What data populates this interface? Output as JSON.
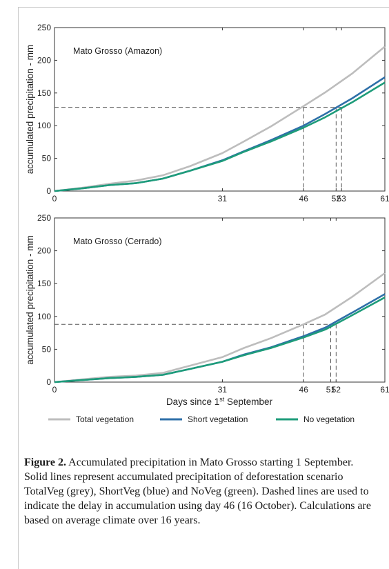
{
  "chart_data": [
    {
      "type": "line",
      "title": "Mato Grosso (Amazon)",
      "xlabel": "",
      "ylabel": "accumulated precipitation - mm",
      "xlim": [
        0,
        61
      ],
      "ylim": [
        0,
        250
      ],
      "yticks": [
        0,
        50,
        100,
        150,
        200,
        250
      ],
      "xticks": [
        0,
        31,
        46,
        52,
        53,
        61
      ],
      "x": [
        0,
        5,
        10,
        15,
        20,
        25,
        31,
        35,
        40,
        46,
        50,
        55,
        61
      ],
      "series": [
        {
          "name": "Total vegetation",
          "color": "#bdbdbd",
          "values": [
            0,
            5,
            11,
            16,
            24,
            38,
            58,
            76,
            99,
            130,
            151,
            180,
            221
          ]
        },
        {
          "name": "Short vegetation",
          "color": "#2e6fa8",
          "values": [
            0,
            4,
            9,
            12,
            19,
            31,
            47,
            61,
            78,
            100,
            118,
            142,
            174
          ]
        },
        {
          "name": "No vegetation",
          "color": "#1e9c7a",
          "values": [
            0,
            4,
            9,
            12,
            19,
            31,
            46,
            60,
            76,
            97,
            113,
            136,
            166
          ]
        }
      ],
      "reference_y": 128,
      "reference_x": [
        46,
        52,
        53
      ]
    },
    {
      "type": "line",
      "title": "Mato Grosso (Cerrado)",
      "xlabel": "Days since 1st September",
      "ylabel": "accumulated precipitation - mm",
      "xlim": [
        0,
        61
      ],
      "ylim": [
        0,
        250
      ],
      "yticks": [
        0,
        50,
        100,
        150,
        200,
        250
      ],
      "xticks": [
        0,
        31,
        46,
        51,
        52,
        61
      ],
      "x": [
        0,
        5,
        10,
        15,
        20,
        25,
        31,
        35,
        40,
        46,
        50,
        55,
        61
      ],
      "series": [
        {
          "name": "Total vegetation",
          "color": "#bdbdbd",
          "values": [
            0,
            4,
            8,
            10,
            14,
            25,
            38,
            52,
            67,
            88,
            103,
            130,
            166
          ]
        },
        {
          "name": "Short vegetation",
          "color": "#2e6fa8",
          "values": [
            0,
            3,
            6,
            8,
            11,
            20,
            31,
            42,
            53,
            70,
            83,
            106,
            134
          ]
        },
        {
          "name": "No vegetation",
          "color": "#1e9c7a",
          "values": [
            0,
            3,
            6,
            8,
            11,
            20,
            31,
            41,
            52,
            68,
            80,
            102,
            129
          ]
        }
      ],
      "reference_y": 88,
      "reference_x": [
        46,
        51,
        52
      ]
    }
  ],
  "xlabel_parts": {
    "pre": "Days since 1",
    "sup": "st",
    "post": " September"
  },
  "legend": [
    {
      "label": "Total vegetation",
      "color": "#bdbdbd"
    },
    {
      "label": "Short vegetation",
      "color": "#2e6fa8"
    },
    {
      "label": "No vegetation",
      "color": "#1e9c7a"
    }
  ],
  "caption": {
    "label": "Figure 2.",
    "text": " Accumulated precipitation in Mato Grosso starting 1 September. Solid lines represent accumulated precipitation of deforestation scenario TotalVeg (grey), ShortVeg (blue) and NoVeg (green). Dashed lines are used to indicate the delay in accumulation using day 46 (16 October). Calculations are based on average climate over 16 years."
  }
}
